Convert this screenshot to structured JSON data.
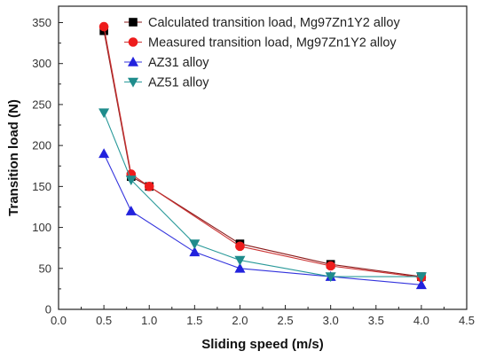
{
  "chart_data": {
    "type": "line",
    "xlabel": "Sliding speed (m/s)",
    "ylabel": "Transition load (N)",
    "xlim": [
      0.0,
      4.5
    ],
    "ylim": [
      0,
      370
    ],
    "xticks": [
      "0.0",
      "0.5",
      "1.0",
      "1.5",
      "2.0",
      "2.5",
      "3.0",
      "3.5",
      "4.0",
      "4.5"
    ],
    "yticks": [
      "0",
      "50",
      "100",
      "150",
      "200",
      "250",
      "300",
      "350"
    ],
    "grid": false,
    "legend_position": "top-right",
    "series": [
      {
        "name": "Calculated transition load, Mg97Zn1Y2 alloy",
        "color": "#000000",
        "line_color": "#8b1a1a",
        "marker": "square",
        "x": [
          0.5,
          0.8,
          1.0,
          2.0,
          3.0,
          4.0
        ],
        "y": [
          340,
          162,
          150,
          80,
          55,
          40
        ]
      },
      {
        "name": "Measured transition load, Mg97Zn1Y2 alloy",
        "color": "#ee1c1c",
        "line_color": "#cc3333",
        "marker": "circle",
        "x": [
          0.5,
          0.8,
          1.0,
          2.0,
          3.0,
          4.0
        ],
        "y": [
          345,
          165,
          150,
          77,
          53,
          39
        ]
      },
      {
        "name": "AZ31 alloy",
        "color": "#2222dd",
        "line_color": "#3333dd",
        "marker": "triangle-up",
        "x": [
          0.5,
          0.8,
          1.5,
          2.0,
          3.0,
          4.0
        ],
        "y": [
          190,
          120,
          70,
          50,
          40,
          30
        ]
      },
      {
        "name": "AZ51 alloy",
        "color": "#1f8c8c",
        "line_color": "#2a9a9a",
        "marker": "triangle-down",
        "x": [
          0.5,
          0.8,
          1.5,
          2.0,
          3.0,
          4.0
        ],
        "y": [
          240,
          158,
          80,
          60,
          40,
          40
        ]
      }
    ]
  }
}
